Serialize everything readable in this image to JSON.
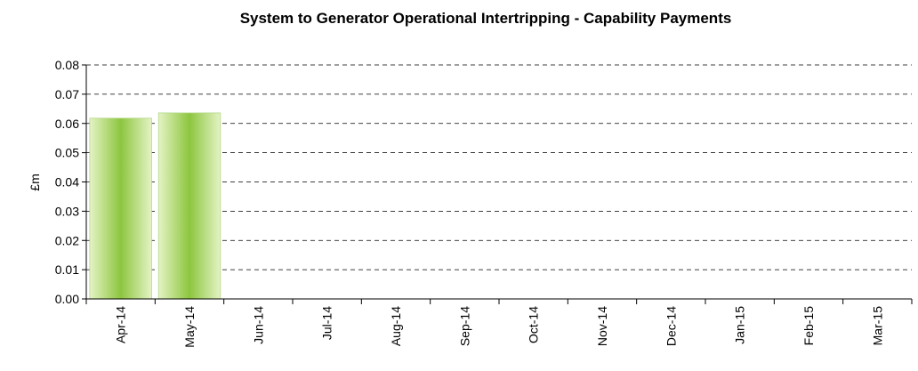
{
  "chart_data": {
    "type": "bar",
    "title": "System to Generator Operational Intertripping - Capability Payments",
    "y_label": "£m",
    "categories": [
      "Apr-14",
      "May-14",
      "Jun-14",
      "Jul-14",
      "Aug-14",
      "Sep-14",
      "Oct-14",
      "Nov-14",
      "Dec-14",
      "Jan-15",
      "Feb-15",
      "Mar-15"
    ],
    "values": [
      0.0618,
      0.0636,
      null,
      null,
      null,
      null,
      null,
      null,
      null,
      null,
      null,
      null
    ],
    "color": "#8dc63f",
    "ylim": [
      0,
      0.08
    ],
    "yticks": [
      {
        "value": 0,
        "label": "0.00"
      },
      0.01,
      0.02,
      0.03,
      0.04,
      0.05,
      0.06,
      0.07,
      0.08
    ],
    "grid": true
  }
}
